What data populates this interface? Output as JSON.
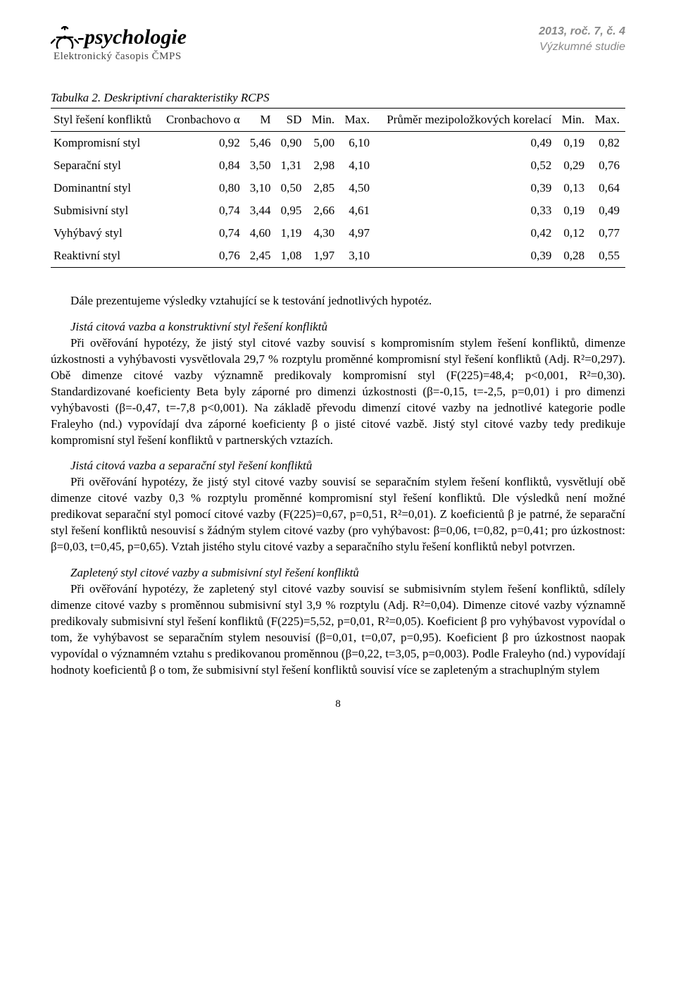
{
  "header": {
    "logo_text": "-psychologie",
    "logo_sub": "Elektronický časopis ČMPS",
    "issue": "2013, roč. 7, č. 4",
    "section": "Výzkumné studie"
  },
  "table": {
    "caption": "Tabulka 2. Deskriptivní charakteristiky RCPS",
    "columns": [
      "Styl řešení konfliktů",
      "Cronbachovo α",
      "M",
      "SD",
      "Min.",
      "Max.",
      "Průměr mezipoložkových korelací",
      "Min.",
      "Max."
    ],
    "rows": [
      [
        "Kompromisní styl",
        "0,92",
        "5,46",
        "0,90",
        "5,00",
        "6,10",
        "0,49",
        "0,19",
        "0,82"
      ],
      [
        "Separační styl",
        "0,84",
        "3,50",
        "1,31",
        "2,98",
        "4,10",
        "0,52",
        "0,29",
        "0,76"
      ],
      [
        "Dominantní styl",
        "0,80",
        "3,10",
        "0,50",
        "2,85",
        "4,50",
        "0,39",
        "0,13",
        "0,64"
      ],
      [
        "Submisivní styl",
        "0,74",
        "3,44",
        "0,95",
        "2,66",
        "4,61",
        "0,33",
        "0,19",
        "0,49"
      ],
      [
        "Vyhýbavý styl",
        "0,74",
        "4,60",
        "1,19",
        "4,30",
        "4,97",
        "0,42",
        "0,12",
        "0,77"
      ],
      [
        "Reaktivní styl",
        "0,76",
        "2,45",
        "1,08",
        "1,97",
        "3,10",
        "0,39",
        "0,28",
        "0,55"
      ]
    ],
    "col_aligns": [
      "label",
      "num",
      "num",
      "num",
      "num",
      "num",
      "num",
      "num",
      "num"
    ]
  },
  "paragraphs": {
    "intro": "Dále prezentujeme výsledky vztahující se k testování jednotlivých hypotéz.",
    "h1": "Jistá citová vazba a konstruktivní styl řešení konfliktů",
    "p1": "Při ověřování hypotézy, že jistý styl citové vazby souvisí s kompromisním stylem řešení konfliktů, dimenze úzkostnosti a vyhýbavosti vysvětlovala 29,7 % rozptylu proměnné kompromisní styl řešení konfliktů (Adj. R²=0,297). Obě dimenze citové vazby významně predikovaly kompromisní styl (F(225)=48,4; p<0,001, R²=0,30). Standardizované koeficienty Beta byly záporné pro dimenzi úzkostnosti (β=-0,15, t=-2,5, p=0,01) i pro dimenzi vyhýbavosti (β=-0,47, t=-7,8 p<0,001). Na základě převodu dimenzí citové vazby na jednotlivé kategorie podle Fraleyho (nd.) vypovídají dva záporné koeficienty β o jisté citové vazbě. Jistý styl citové vazby tedy predikuje kompromisní styl řešení konfliktů v partnerských vztazích.",
    "h2": "Jistá citová vazba a separační styl řešení konfliktů",
    "p2": "Při ověřování hypotézy, že jistý styl citové vazby souvisí se separačním stylem řešení konfliktů, vysvětlují obě dimenze citové vazby 0,3 % rozptylu proměnné kompromisní styl řešení konfliktů. Dle výsledků není možné predikovat separační styl pomocí citové vazby (F(225)=0,67, p=0,51, R²=0,01). Z koeficientů β je patrné, že separační styl řešení konfliktů nesouvisí s žádným stylem citové vazby (pro vyhýbavost: β=0,06, t=0,82, p=0,41; pro úzkostnost: β=0,03, t=0,45, p=0,65). Vztah jistého stylu citové vazby a separačního stylu řešení konfliktů nebyl potvrzen.",
    "h3": "Zapletený styl citové vazby a submisivní styl řešení konfliktů",
    "p3": "Při ověřování hypotézy, že zapletený styl citové vazby souvisí se submisivním stylem řešení konfliktů, sdílely dimenze citové vazby s proměnnou submisivní styl 3,9 % rozptylu (Adj. R²=0,04). Dimenze citové vazby významně predikovaly submisivní styl řešení konfliktů (F(225)=5,52, p=0,01, R²=0,05). Koeficient β pro vyhýbavost vypovídal o tom, že vyhýbavost se separačním stylem nesouvisí (β=0,01, t=0,07, p=0,95). Koeficient β pro úzkostnost naopak vypovídal o významném vztahu s predikovanou proměnnou (β=0,22, t=3,05, p=0,003). Podle Fraleyho (nd.) vypovídají hodnoty koeficientů β o tom, že submisivní styl řešení konfliktů souvisí více se zapleteným a strachuplným stylem"
  },
  "page_number": "8"
}
